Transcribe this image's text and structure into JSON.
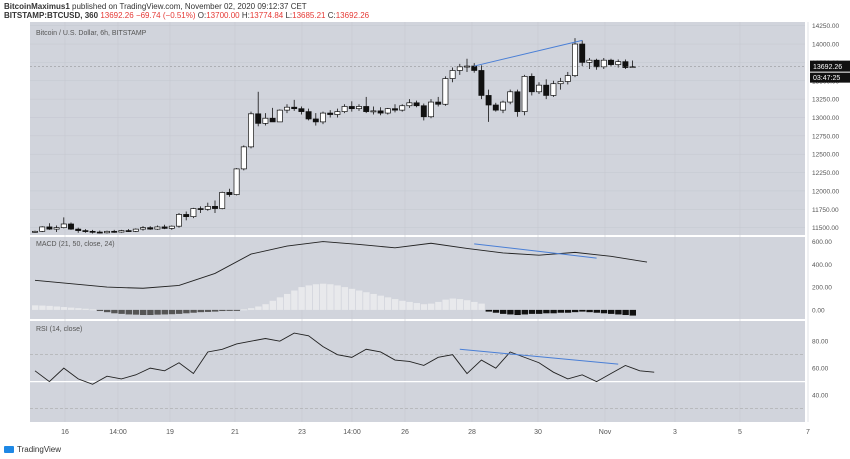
{
  "header": {
    "author": "BitcoinMaximus1",
    "published": "published on TradingView.com, November 02, 2020 09:12:37 CET",
    "symbol": "BITSTAMP:BTCUSD, 360",
    "last": "13692.26",
    "change": "−69.74 (−0.51%)",
    "o_label": "O:",
    "o": "13700.00",
    "h_label": "H:",
    "h": "13774.84",
    "l_label": "L:",
    "l": "13685.21",
    "c_label": "C:",
    "c": "13692.26"
  },
  "footer": {
    "brand": "TradingView"
  },
  "chart_data": [
    {
      "type": "candlestick",
      "title": "Bitcoin / U.S. Dollar, 6h, BITSTAMP",
      "ylim": [
        11400,
        14300
      ],
      "yticks": [
        11500,
        11750,
        12000,
        12250,
        12500,
        12750,
        13000,
        13250,
        13500,
        13750,
        14000,
        14250
      ],
      "ytick_labels": [
        "11500.00",
        "11750.00",
        "12000.00",
        "12250.00",
        "12500.00",
        "12750.00",
        "13000.00",
        "13250.00",
        "13500.00",
        "13750.00",
        "14000.00",
        "14250.00"
      ],
      "price_label": "13692.26",
      "countdown_label": "03:47:25",
      "x_labels": [
        "16",
        "14:00",
        "19",
        "21",
        "23",
        "14:00",
        "26",
        "28",
        "30",
        "Nov",
        "3",
        "5",
        "7"
      ],
      "candles": [
        [
          11450,
          11460,
          11430,
          11450
        ],
        [
          11450,
          11520,
          11440,
          11510
        ],
        [
          11510,
          11560,
          11470,
          11480
        ],
        [
          11480,
          11530,
          11440,
          11500
        ],
        [
          11500,
          11640,
          11490,
          11550
        ],
        [
          11550,
          11570,
          11470,
          11480
        ],
        [
          11480,
          11500,
          11430,
          11460
        ],
        [
          11460,
          11480,
          11430,
          11450
        ],
        [
          11450,
          11470,
          11420,
          11440
        ],
        [
          11440,
          11460,
          11420,
          11430
        ],
        [
          11430,
          11460,
          11420,
          11450
        ],
        [
          11450,
          11470,
          11430,
          11440
        ],
        [
          11440,
          11470,
          11430,
          11460
        ],
        [
          11460,
          11480,
          11440,
          11450
        ],
        [
          11450,
          11490,
          11440,
          11480
        ],
        [
          11480,
          11520,
          11460,
          11500
        ],
        [
          11500,
          11520,
          11470,
          11480
        ],
        [
          11480,
          11530,
          11470,
          11510
        ],
        [
          11510,
          11540,
          11480,
          11490
        ],
        [
          11490,
          11530,
          11470,
          11520
        ],
        [
          11520,
          11700,
          11500,
          11680
        ],
        [
          11680,
          11720,
          11600,
          11650
        ],
        [
          11650,
          11770,
          11630,
          11760
        ],
        [
          11760,
          11790,
          11700,
          11750
        ],
        [
          11750,
          11840,
          11730,
          11790
        ],
        [
          11790,
          11870,
          11700,
          11760
        ],
        [
          11760,
          11990,
          11750,
          11980
        ],
        [
          11980,
          12030,
          11920,
          11950
        ],
        [
          11950,
          12310,
          11940,
          12300
        ],
        [
          12300,
          12620,
          12280,
          12600
        ],
        [
          12600,
          13080,
          12580,
          13050
        ],
        [
          13050,
          13350,
          12880,
          12920
        ],
        [
          12920,
          13060,
          12890,
          12990
        ],
        [
          12990,
          13130,
          12960,
          12940
        ],
        [
          12940,
          13110,
          12950,
          13100
        ],
        [
          13100,
          13180,
          13060,
          13140
        ],
        [
          13140,
          13240,
          13090,
          13120
        ],
        [
          13120,
          13150,
          13040,
          13080
        ],
        [
          13080,
          13120,
          12960,
          12980
        ],
        [
          12980,
          13060,
          12890,
          12940
        ],
        [
          12940,
          13080,
          12910,
          13060
        ],
        [
          13060,
          13100,
          13000,
          13040
        ],
        [
          13040,
          13120,
          13000,
          13080
        ],
        [
          13080,
          13180,
          13060,
          13150
        ],
        [
          13150,
          13220,
          13080,
          13120
        ],
        [
          13120,
          13180,
          13090,
          13150
        ],
        [
          13150,
          13280,
          13060,
          13080
        ],
        [
          13080,
          13150,
          13040,
          13090
        ],
        [
          13090,
          13140,
          13030,
          13060
        ],
        [
          13060,
          13130,
          13040,
          13120
        ],
        [
          13120,
          13180,
          13070,
          13100
        ],
        [
          13100,
          13180,
          13080,
          13160
        ],
        [
          13160,
          13250,
          13130,
          13200
        ],
        [
          13200,
          13230,
          13140,
          13160
        ],
        [
          13160,
          13190,
          12960,
          13010
        ],
        [
          13010,
          13250,
          12990,
          13210
        ],
        [
          13210,
          13280,
          13150,
          13180
        ],
        [
          13180,
          13560,
          13160,
          13530
        ],
        [
          13530,
          13680,
          13480,
          13640
        ],
        [
          13640,
          13730,
          13580,
          13690
        ],
        [
          13690,
          13800,
          13620,
          13700
        ],
        [
          13700,
          13740,
          13610,
          13640
        ],
        [
          13640,
          13710,
          13250,
          13300
        ],
        [
          13300,
          13380,
          12940,
          13170
        ],
        [
          13170,
          13200,
          13080,
          13100
        ],
        [
          13100,
          13230,
          13060,
          13210
        ],
        [
          13210,
          13380,
          13180,
          13350
        ],
        [
          13350,
          13380,
          13010,
          13080
        ],
        [
          13080,
          13580,
          13030,
          13560
        ],
        [
          13560,
          13600,
          13300,
          13350
        ],
        [
          13350,
          13480,
          13320,
          13440
        ],
        [
          13440,
          13520,
          13250,
          13300
        ],
        [
          13300,
          13500,
          13280,
          13460
        ],
        [
          13460,
          13540,
          13380,
          13490
        ],
        [
          13490,
          13620,
          13450,
          13570
        ],
        [
          13570,
          14080,
          13550,
          14000
        ],
        [
          14000,
          14050,
          13700,
          13750
        ],
        [
          13750,
          13810,
          13660,
          13780
        ],
        [
          13780,
          13800,
          13650,
          13690
        ],
        [
          13690,
          13810,
          13660,
          13780
        ],
        [
          13780,
          13800,
          13700,
          13720
        ],
        [
          13720,
          13790,
          13680,
          13760
        ],
        [
          13760,
          13790,
          13660,
          13680
        ],
        [
          13690,
          13775,
          13685,
          13692
        ]
      ],
      "trendline": {
        "x": [
          61,
          76
        ],
        "y": [
          13700,
          14050
        ]
      }
    },
    {
      "type": "line",
      "title": "MACD (21, 50, close, 24)",
      "ylim": [
        -80,
        640
      ],
      "yticks": [
        0,
        200,
        400,
        600
      ],
      "ytick_labels": [
        "0.00",
        "200.00",
        "400.00",
        "600.00"
      ],
      "macd_points": {
        "x": [
          0,
          5,
          10,
          15,
          20,
          25,
          30,
          35,
          40,
          45,
          50,
          55,
          60,
          65,
          70,
          75,
          80,
          85
        ],
        "y": [
          260,
          230,
          200,
          190,
          215,
          320,
          490,
          560,
          600,
          575,
          545,
          585,
          540,
          500,
          480,
          505,
          470,
          420
        ]
      },
      "histogram": [
        40,
        38,
        35,
        30,
        25,
        20,
        15,
        10,
        5,
        -10,
        -20,
        -30,
        -35,
        -40,
        -42,
        -45,
        -45,
        -42,
        -40,
        -38,
        -35,
        -30,
        -25,
        -20,
        -18,
        -15,
        -10,
        -8,
        -5,
        5,
        15,
        30,
        50,
        80,
        110,
        140,
        170,
        200,
        215,
        225,
        230,
        225,
        215,
        200,
        185,
        170,
        155,
        140,
        125,
        110,
        95,
        80,
        70,
        60,
        50,
        55,
        70,
        90,
        100,
        95,
        85,
        70,
        55,
        -15,
        -25,
        -35,
        -40,
        -45,
        -40,
        -35,
        -35,
        -30,
        -30,
        -25,
        -25,
        -20,
        -15,
        -20,
        -25,
        -30,
        -35,
        -40,
        -45,
        -50
      ],
      "trendline": {
        "x": [
          61,
          78
        ],
        "y": [
          580,
          455
        ]
      }
    },
    {
      "type": "line",
      "title": "RSI (14, close)",
      "ylim": [
        20,
        95
      ],
      "yticks": [
        40,
        60,
        80
      ],
      "ytick_labels": [
        "40.00",
        "60.00",
        "80.00"
      ],
      "rsi_points": {
        "x": [
          0,
          2,
          4,
          6,
          8,
          10,
          12,
          14,
          16,
          18,
          20,
          22,
          24,
          26,
          28,
          30,
          32,
          34,
          36,
          38,
          40,
          42,
          44,
          46,
          48,
          50,
          52,
          54,
          56,
          58,
          60,
          62,
          64,
          66,
          68,
          70,
          72,
          74,
          76,
          78,
          80,
          82,
          84,
          86
        ],
        "y": [
          58,
          50,
          60,
          52,
          48,
          54,
          52,
          55,
          60,
          58,
          64,
          56,
          72,
          74,
          78,
          80,
          82,
          80,
          86,
          84,
          76,
          70,
          68,
          74,
          72,
          66,
          65,
          62,
          68,
          70,
          56,
          66,
          60,
          72,
          68,
          64,
          57,
          52,
          55,
          50,
          56,
          62,
          58,
          57
        ]
      },
      "levels": [
        70,
        50,
        30
      ],
      "trendline": {
        "x": [
          59,
          81
        ],
        "y": [
          74,
          63
        ]
      }
    }
  ]
}
